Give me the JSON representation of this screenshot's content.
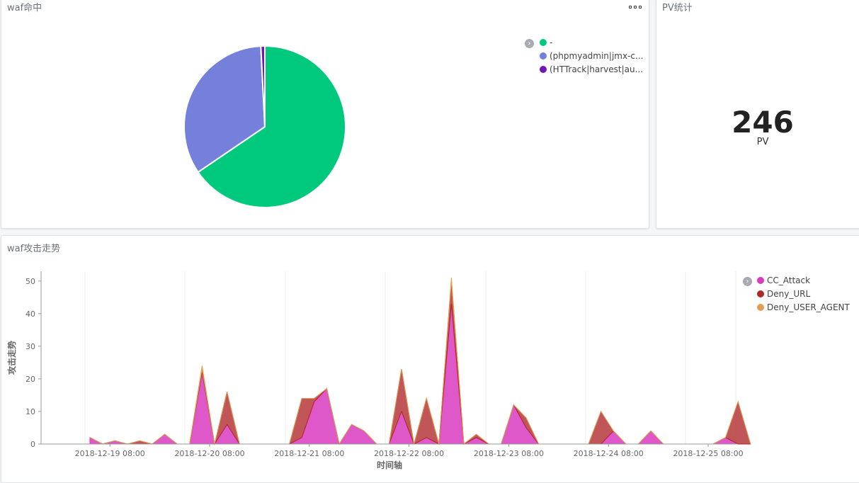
{
  "pie_panel": {
    "title": "waf命中",
    "legend": [
      {
        "label": "-",
        "color": "#00c97e"
      },
      {
        "label": "(phpmyadmin|jmx-c...",
        "color": "#7480d9"
      },
      {
        "label": "(HTTrack|harvest|au...",
        "color": "#6f18ba"
      }
    ]
  },
  "pv_panel": {
    "title": "PV统计",
    "value": "246",
    "label": "PV"
  },
  "area_panel": {
    "title": "waf攻击走势",
    "legend": [
      {
        "label": "CC_Attack",
        "color": "#d93bbf"
      },
      {
        "label": "Deny_URL",
        "color": "#b0272a"
      },
      {
        "label": "Deny_USER_AGENT",
        "color": "#e0a051"
      }
    ]
  },
  "chart_data": [
    {
      "type": "pie",
      "title": "waf命中",
      "labels": [
        "-",
        "(phpmyadmin|jmx-c...",
        "(HTTrack|harvest|au..."
      ],
      "values": [
        65.5,
        33.7,
        0.8
      ],
      "colors": [
        "#00c97e",
        "#7480d9",
        "#6f18ba"
      ],
      "legend_position": "right"
    },
    {
      "type": "area",
      "title": "waf攻击走势",
      "xlabel": "时间轴",
      "ylabel": "攻击走势",
      "ylim": [
        0,
        53
      ],
      "yticks": [
        0,
        10,
        20,
        30,
        40,
        50
      ],
      "x_tick_labels": [
        "2018-12-19 08:00",
        "2018-12-20 08:00",
        "2018-12-21 08:00",
        "2018-12-22 08:00",
        "2018-12-23 08:00",
        "2018-12-24 08:00",
        "2018-12-25 08:00"
      ],
      "x_tick_index": [
        2,
        10,
        18,
        26,
        34,
        42,
        50
      ],
      "x_count": 54,
      "grid": true,
      "legend_position": "right",
      "series": [
        {
          "name": "CC_Attack",
          "color": "#d93bbf",
          "values": [
            2,
            0,
            1,
            0,
            0,
            0,
            3,
            0,
            0,
            22,
            0,
            6,
            0,
            0,
            0,
            0,
            0,
            2,
            13,
            17,
            0,
            6,
            4,
            0,
            0,
            10,
            0,
            2,
            0,
            43,
            0,
            2,
            0,
            0,
            12,
            5,
            0,
            0,
            0,
            0,
            0,
            0,
            4,
            0,
            0,
            4,
            0,
            0,
            0,
            0,
            0,
            2,
            0,
            0
          ]
        },
        {
          "name": "Deny_URL",
          "color": "#b0272a",
          "values": [
            0,
            0,
            0,
            0,
            1,
            0,
            0,
            0,
            0,
            1,
            0,
            10,
            0,
            0,
            0,
            0,
            0,
            12,
            1,
            0,
            0,
            0,
            0,
            0,
            0,
            13,
            0,
            12,
            0,
            7,
            0,
            1,
            0,
            0,
            0,
            3,
            0,
            0,
            0,
            0,
            0,
            10,
            0,
            0,
            0,
            0,
            0,
            0,
            0,
            0,
            0,
            0,
            13,
            0
          ]
        },
        {
          "name": "Deny_USER_AGENT",
          "color": "#e0a051",
          "values": [
            0,
            0,
            0,
            0,
            0,
            0,
            0,
            0,
            0,
            1,
            0,
            0,
            0,
            0,
            0,
            0,
            0,
            0,
            0,
            0,
            0,
            0,
            0,
            0,
            0,
            0,
            0,
            0,
            0,
            1,
            0,
            0,
            0,
            0,
            0,
            0,
            0,
            0,
            0,
            0,
            0,
            0,
            0,
            0,
            0,
            0,
            0,
            0,
            0,
            0,
            0,
            0,
            0,
            0
          ]
        }
      ]
    }
  ]
}
